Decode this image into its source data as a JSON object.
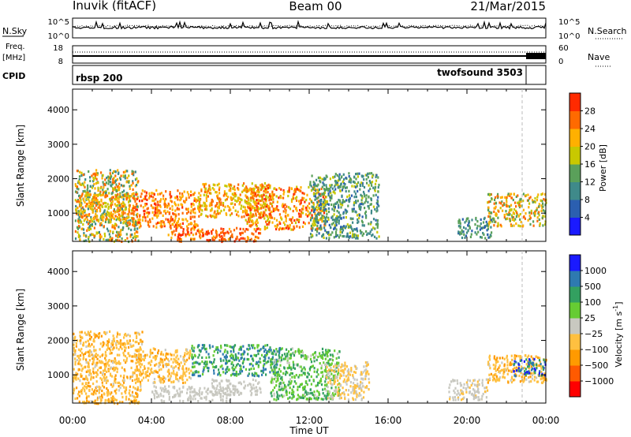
{
  "header": {
    "station": "Inuvik (fitACF)",
    "beam": "Beam 00",
    "date": "21/Mar/2015"
  },
  "panels": {
    "nsky": {
      "left_label": "N.Sky",
      "left_ticks": [
        "10^5",
        "10^0"
      ],
      "right_ticks": [
        "10^5",
        "10^0"
      ],
      "right_label": "N.Search"
    },
    "freq": {
      "left_label_top": "Freq.",
      "left_label_unit": "[MHz]",
      "left_ticks": [
        "18",
        "8"
      ],
      "right_ticks": [
        "60",
        "0"
      ],
      "right_label": "Nave"
    },
    "cpid": {
      "label": "CPID",
      "segments": [
        {
          "name": "rbsp 200",
          "start_hour": 0,
          "end_hour": 22.8
        },
        {
          "name": "twofsound 3503",
          "start_hour": 22.8,
          "end_hour": 24
        }
      ]
    }
  },
  "chart_data": [
    {
      "type": "heatmap",
      "panel": "power",
      "ylabel": "Slant Range [km]",
      "xlabel": "",
      "xlim_hours": [
        0,
        24
      ],
      "ylim_km": [
        180,
        4600
      ],
      "y_ticks": [
        "1000",
        "2000",
        "3000",
        "4000"
      ],
      "colorbar": {
        "label": "Power [dB]",
        "ticks": [
          "4",
          "8",
          "12",
          "16",
          "20",
          "24",
          "28"
        ],
        "range": [
          0,
          32
        ],
        "colors": [
          "#1a1aff",
          "#2b5fb0",
          "#3f8a8a",
          "#5aa05a",
          "#c8c800",
          "#ffb000",
          "#ff6a00",
          "#ff2a00"
        ]
      },
      "regions": [
        {
          "t": [
            0.1,
            3.3
          ],
          "r": [
            200,
            2300
          ],
          "v": [
            8,
            28
          ]
        },
        {
          "t": [
            0.3,
            3.0
          ],
          "r": [
            800,
            1600
          ],
          "v": [
            18,
            26
          ]
        },
        {
          "t": [
            3.0,
            6.3
          ],
          "r": [
            600,
            1700
          ],
          "v": [
            20,
            30
          ]
        },
        {
          "t": [
            4.8,
            9.5
          ],
          "r": [
            200,
            600
          ],
          "v": [
            22,
            30
          ]
        },
        {
          "t": [
            6.3,
            10.0
          ],
          "r": [
            900,
            1900
          ],
          "v": [
            16,
            28
          ]
        },
        {
          "t": [
            8.7,
            12.8
          ],
          "r": [
            550,
            1800
          ],
          "v": [
            18,
            30
          ]
        },
        {
          "t": [
            12.0,
            15.5
          ],
          "r": [
            300,
            2200
          ],
          "v": [
            6,
            18
          ]
        },
        {
          "t": [
            21.0,
            24.0
          ],
          "r": [
            650,
            1600
          ],
          "v": [
            12,
            28
          ]
        },
        {
          "t": [
            19.5,
            21.2
          ],
          "r": [
            300,
            900
          ],
          "v": [
            6,
            16
          ]
        }
      ],
      "x_ticks": [
        "00:00",
        "04:00",
        "08:00",
        "12:00",
        "16:00",
        "20:00",
        "00:00"
      ]
    },
    {
      "type": "heatmap",
      "panel": "velocity",
      "ylabel": "Slant Range [km]",
      "xlabel": "Time UT",
      "xlim_hours": [
        0,
        24
      ],
      "ylim_km": [
        180,
        4600
      ],
      "y_ticks": [
        "1000",
        "2000",
        "3000",
        "4000"
      ],
      "colorbar": {
        "label": "Velocity [m s^-1]",
        "ticks": [
          "1000",
          "500",
          "100",
          "25",
          "−25",
          "−100",
          "−500",
          "−1000"
        ],
        "range": [
          -1200,
          1200
        ],
        "colors": [
          "#ff0000",
          "#ff5a00",
          "#ff9a00",
          "#ffc040",
          "#c8c8c0",
          "#66cc33",
          "#33a060",
          "#2e7ab0",
          "#1a1aff"
        ]
      },
      "regions": [
        {
          "t": [
            0.0,
            3.5
          ],
          "r": [
            200,
            2300
          ],
          "v": [
            -100,
            -500
          ]
        },
        {
          "t": [
            3.2,
            6.0
          ],
          "r": [
            800,
            1800
          ],
          "v": [
            -100,
            -500
          ]
        },
        {
          "t": [
            4.0,
            8.0
          ],
          "r": [
            250,
            700
          ],
          "v": [
            -25,
            25
          ]
        },
        {
          "t": [
            6.0,
            10.5
          ],
          "r": [
            1000,
            1900
          ],
          "v": [
            200,
            900
          ]
        },
        {
          "t": [
            7.0,
            9.5
          ],
          "r": [
            450,
            900
          ],
          "v": [
            -20,
            25
          ]
        },
        {
          "t": [
            10.0,
            13.5
          ],
          "r": [
            300,
            1800
          ],
          "v": [
            60,
            600
          ]
        },
        {
          "t": [
            12.8,
            15.0
          ],
          "r": [
            300,
            1400
          ],
          "v": [
            -300,
            20
          ]
        },
        {
          "t": [
            19.0,
            21.0
          ],
          "r": [
            300,
            900
          ],
          "v": [
            -200,
            60
          ]
        },
        {
          "t": [
            21.0,
            24.0
          ],
          "r": [
            800,
            1600
          ],
          "v": [
            -500,
            -100
          ]
        },
        {
          "t": [
            22.3,
            24.0
          ],
          "r": [
            1000,
            1500
          ],
          "v": [
            500,
            1100
          ]
        }
      ],
      "x_ticks": [
        "00:00",
        "04:00",
        "08:00",
        "12:00",
        "16:00",
        "20:00",
        "00:00"
      ]
    }
  ]
}
